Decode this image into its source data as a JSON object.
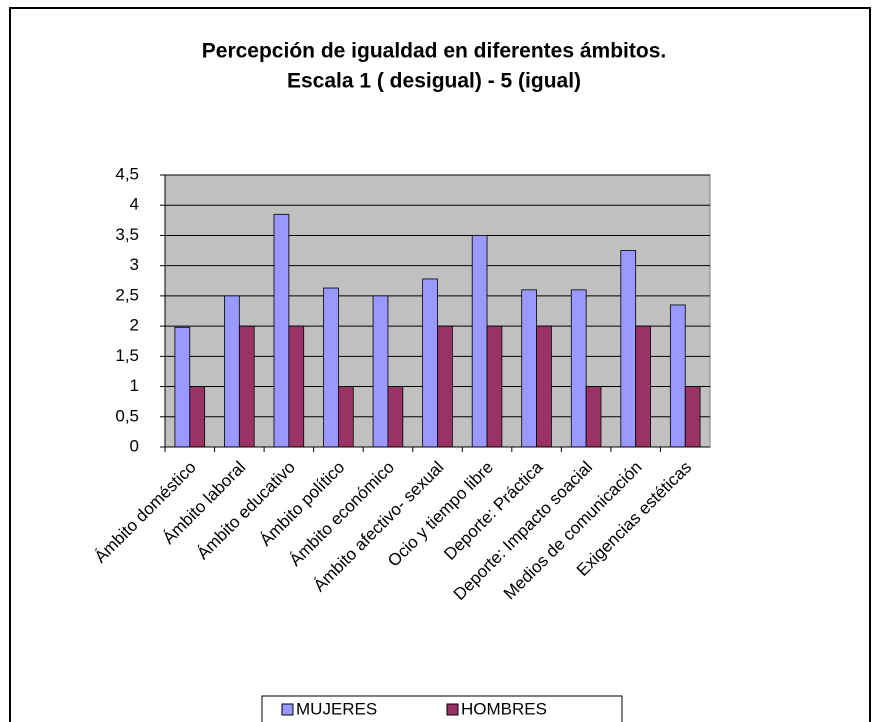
{
  "chart_data": {
    "type": "bar",
    "title": "Percepción de igualdad en diferentes ámbitos.",
    "subtitle": "Escala 1 ( desigual) - 5  (igual)",
    "categories": [
      "Ámbito doméstico",
      "Ámbito laboral",
      "Ámbito educativo",
      "Ámbito político",
      "Ámbito económico",
      "Ámbito afectivo- sexual",
      "Ocio y tiempo libre",
      "Deporte: Práctica",
      "Deporte: Impacto soacial",
      "Medios de comunicación",
      "Exigencias estéticas"
    ],
    "series": [
      {
        "name": "MUJERES",
        "color": "#9999ff",
        "values": [
          1.98,
          2.5,
          3.85,
          2.63,
          2.5,
          2.78,
          3.5,
          2.6,
          2.6,
          3.25,
          2.35
        ]
      },
      {
        "name": "HOMBRES",
        "color": "#993366",
        "values": [
          1,
          2,
          2,
          1,
          1,
          2,
          2,
          2,
          1,
          2,
          1
        ]
      }
    ],
    "ylim": [
      0,
      4.5
    ],
    "yticks": [
      0,
      {
        "value": 0.5,
        "label": "0,5"
      },
      1,
      {
        "value": 1.5,
        "label": "1,5"
      },
      2,
      {
        "value": 2.5,
        "label": "2,5"
      },
      3,
      {
        "value": 3.5,
        "label": "3,5"
      },
      4,
      {
        "value": 4.5,
        "label": "4,5"
      }
    ],
    "grid": true,
    "legend": "bottom"
  }
}
